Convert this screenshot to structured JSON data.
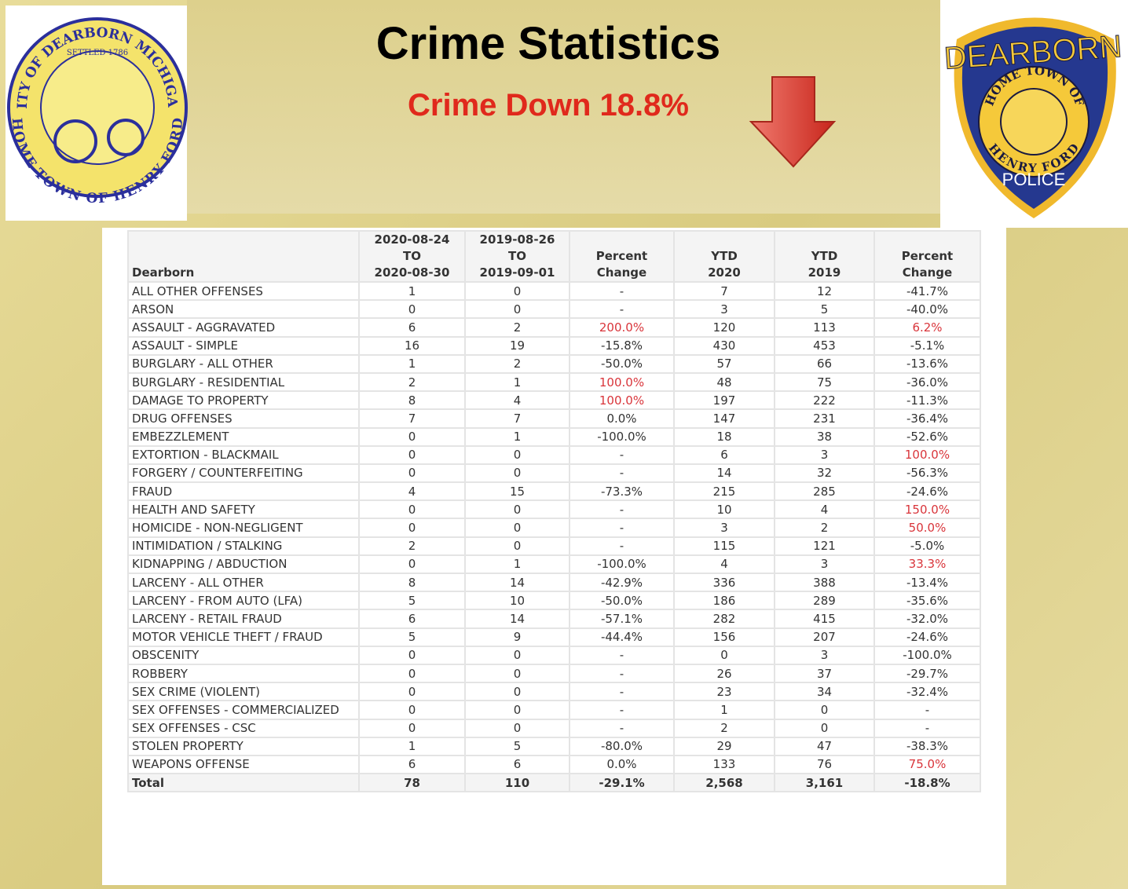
{
  "header": {
    "title": "Crime Statistics",
    "subtitle": "Crime Down 18.8%"
  },
  "left_logo": {
    "ring_top": "CITY OF DEARBORN MICHIGAN",
    "settled": "SETTLED 1786",
    "ring_bottom": "HOME TOWN OF HENRY FORD"
  },
  "right_logo": {
    "top": "DEARBORN",
    "ring_top": "HOME TOWN OF",
    "ring_bottom": "HENRY FORD",
    "bottom": "POLICE"
  },
  "table": {
    "columns": [
      [
        "Dearborn"
      ],
      [
        "2020-08-24",
        "TO",
        "2020-08-30"
      ],
      [
        "2019-08-26",
        "TO",
        "2019-09-01"
      ],
      [
        "Percent",
        "Change"
      ],
      [
        "YTD",
        "2020"
      ],
      [
        "YTD",
        "2019"
      ],
      [
        "Percent",
        "Change"
      ]
    ],
    "rows": [
      [
        "ALL OTHER OFFENSES",
        "1",
        "0",
        "-",
        "7",
        "12",
        "-41.7%"
      ],
      [
        "ARSON",
        "0",
        "0",
        "-",
        "3",
        "5",
        "-40.0%"
      ],
      [
        "ASSAULT - AGGRAVATED",
        "6",
        "2",
        "200.0%",
        "120",
        "113",
        "6.2%"
      ],
      [
        "ASSAULT - SIMPLE",
        "16",
        "19",
        "-15.8%",
        "430",
        "453",
        "-5.1%"
      ],
      [
        "BURGLARY - ALL OTHER",
        "1",
        "2",
        "-50.0%",
        "57",
        "66",
        "-13.6%"
      ],
      [
        "BURGLARY - RESIDENTIAL",
        "2",
        "1",
        "100.0%",
        "48",
        "75",
        "-36.0%"
      ],
      [
        "DAMAGE TO PROPERTY",
        "8",
        "4",
        "100.0%",
        "197",
        "222",
        "-11.3%"
      ],
      [
        "DRUG OFFENSES",
        "7",
        "7",
        "0.0%",
        "147",
        "231",
        "-36.4%"
      ],
      [
        "EMBEZZLEMENT",
        "0",
        "1",
        "-100.0%",
        "18",
        "38",
        "-52.6%"
      ],
      [
        "EXTORTION - BLACKMAIL",
        "0",
        "0",
        "-",
        "6",
        "3",
        "100.0%"
      ],
      [
        "FORGERY / COUNTERFEITING",
        "0",
        "0",
        "-",
        "14",
        "32",
        "-56.3%"
      ],
      [
        "FRAUD",
        "4",
        "15",
        "-73.3%",
        "215",
        "285",
        "-24.6%"
      ],
      [
        "HEALTH AND SAFETY",
        "0",
        "0",
        "-",
        "10",
        "4",
        "150.0%"
      ],
      [
        "HOMICIDE - NON-NEGLIGENT",
        "0",
        "0",
        "-",
        "3",
        "2",
        "50.0%"
      ],
      [
        "INTIMIDATION / STALKING",
        "2",
        "0",
        "-",
        "115",
        "121",
        "-5.0%"
      ],
      [
        "KIDNAPPING / ABDUCTION",
        "0",
        "1",
        "-100.0%",
        "4",
        "3",
        "33.3%"
      ],
      [
        "LARCENY - ALL OTHER",
        "8",
        "14",
        "-42.9%",
        "336",
        "388",
        "-13.4%"
      ],
      [
        "LARCENY - FROM AUTO (LFA)",
        "5",
        "10",
        "-50.0%",
        "186",
        "289",
        "-35.6%"
      ],
      [
        "LARCENY - RETAIL FRAUD",
        "6",
        "14",
        "-57.1%",
        "282",
        "415",
        "-32.0%"
      ],
      [
        "MOTOR VEHICLE THEFT / FRAUD",
        "5",
        "9",
        "-44.4%",
        "156",
        "207",
        "-24.6%"
      ],
      [
        "OBSCENITY",
        "0",
        "0",
        "-",
        "0",
        "3",
        "-100.0%"
      ],
      [
        "ROBBERY",
        "0",
        "0",
        "-",
        "26",
        "37",
        "-29.7%"
      ],
      [
        "SEX CRIME (VIOLENT)",
        "0",
        "0",
        "-",
        "23",
        "34",
        "-32.4%"
      ],
      [
        "SEX OFFENSES - COMMERCIALIZED",
        "0",
        "0",
        "-",
        "1",
        "0",
        "-"
      ],
      [
        "SEX OFFENSES - CSC",
        "0",
        "0",
        "-",
        "2",
        "0",
        "-"
      ],
      [
        "STOLEN PROPERTY",
        "1",
        "5",
        "-80.0%",
        "29",
        "47",
        "-38.3%"
      ],
      [
        "WEAPONS OFFENSE",
        "6",
        "6",
        "0.0%",
        "133",
        "76",
        "75.0%"
      ]
    ],
    "total": [
      "Total",
      "78",
      "110",
      "-29.1%",
      "2,568",
      "3,161",
      "-18.8%"
    ]
  }
}
